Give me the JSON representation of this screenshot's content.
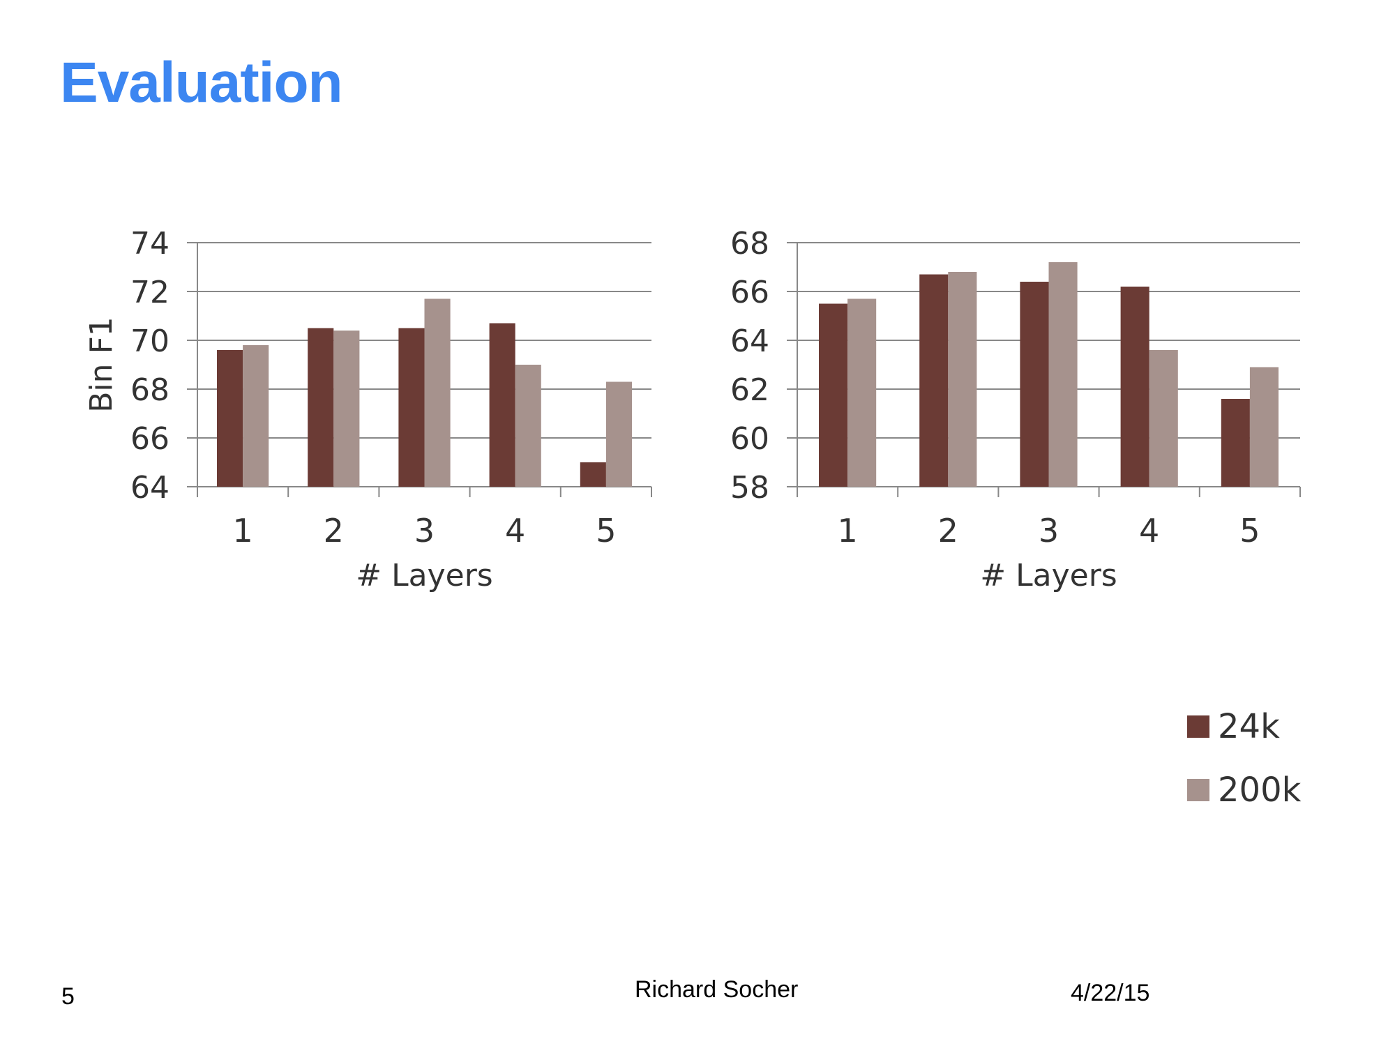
{
  "slide": {
    "title": "Evaluation",
    "title_color": "#3c86f1",
    "page_number": "5",
    "author": "Richard Socher",
    "date": "4/22/15"
  },
  "colors": {
    "series_24k": "#6b3b35",
    "series_200k": "#a6928d",
    "grid": "#888888"
  },
  "legend": [
    {
      "name": "24k",
      "color": "#6b3b35"
    },
    {
      "name": "200k",
      "color": "#a6928d"
    }
  ],
  "chart_data": [
    {
      "type": "bar",
      "title": "",
      "categories": [
        "1",
        "2",
        "3",
        "4",
        "5"
      ],
      "series": [
        {
          "name": "24k",
          "values": [
            69.6,
            70.5,
            70.5,
            70.7,
            65.0
          ]
        },
        {
          "name": "200k",
          "values": [
            69.8,
            70.4,
            71.7,
            69.0,
            68.3
          ]
        }
      ],
      "xlabel": "# Layers",
      "ylabel": "Bin F1",
      "ylim": [
        64,
        74
      ],
      "yticks": [
        64,
        66,
        68,
        70,
        72,
        74
      ],
      "grid": true
    },
    {
      "type": "bar",
      "title": "",
      "categories": [
        "1",
        "2",
        "3",
        "4",
        "5"
      ],
      "series": [
        {
          "name": "24k",
          "values": [
            65.5,
            66.7,
            66.4,
            66.2,
            61.6
          ]
        },
        {
          "name": "200k",
          "values": [
            65.7,
            66.8,
            67.2,
            63.6,
            62.9
          ]
        }
      ],
      "xlabel": "# Layers",
      "ylabel": "",
      "ylim": [
        58,
        68
      ],
      "yticks": [
        58,
        60,
        62,
        64,
        66,
        68
      ],
      "grid": true
    }
  ]
}
